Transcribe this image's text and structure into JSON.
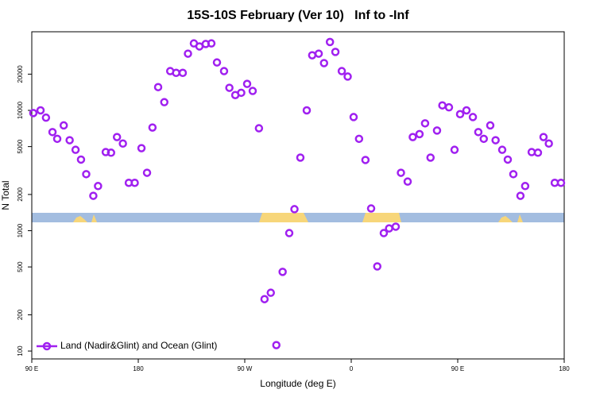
{
  "chart_data": {
    "type": "scatter",
    "title": "15S-10S February (Ver 10)   Inf to -Inf",
    "x_label": "Longitude (deg E)",
    "y_label": "N Total",
    "log_y": true,
    "legend_position": "bottom-left",
    "xlim": [
      90,
      540
    ],
    "ylim": [
      86,
      45000
    ],
    "xticks": [
      {
        "value": 90,
        "label": "90 E"
      },
      {
        "value": 180,
        "label": "180"
      },
      {
        "value": 270,
        "label": "90 W"
      },
      {
        "value": 360,
        "label": "0"
      },
      {
        "value": 450,
        "label": "90 E"
      },
      {
        "value": 540,
        "label": "180"
      }
    ],
    "yticks": [
      100,
      200,
      500,
      1000,
      2000,
      5000,
      10000,
      20000
    ],
    "series": [
      {
        "name": "Land (Nadir&Glint) and Ocean (Glint)",
        "color": "#a020f0",
        "x": [
          91.3,
          97.4,
          102,
          107.5,
          111.5,
          117,
          122,
          127,
          131.6,
          136,
          142,
          146,
          152.5,
          157,
          162,
          167,
          172,
          177,
          182.7,
          187.4,
          192,
          196.8,
          202,
          207,
          212,
          217.6,
          222,
          227,
          231.7,
          237,
          241.8,
          246.5,
          252.5,
          257,
          262,
          267,
          272,
          276.7,
          282,
          286.7,
          292,
          296.7,
          302,
          307.6,
          312,
          317,
          322.4,
          327,
          332.5,
          337,
          342,
          346.6,
          352,
          357,
          362,
          366.6,
          372,
          376.8,
          382,
          387.5,
          392,
          397.6,
          402,
          407.7,
          412,
          417.7,
          422.4,
          427,
          432.5,
          437,
          442.6,
          447.3,
          452,
          457.4,
          462.8,
          467.4,
          472,
          477.5,
          482,
          487.6,
          492.3,
          497,
          503,
          507,
          512.5,
          517.8,
          522.5,
          527,
          532,
          537.3
        ],
        "values": [
          9500,
          10000,
          8700,
          6600,
          5800,
          7500,
          5650,
          4700,
          3900,
          2950,
          1950,
          2350,
          4500,
          4450,
          6000,
          5300,
          2500,
          2500,
          4850,
          3030,
          7200,
          15600,
          11700,
          21200,
          20500,
          20500,
          29600,
          36000,
          34000,
          35600,
          36000,
          25000,
          21200,
          15400,
          13400,
          14000,
          16600,
          14500,
          7100,
          270,
          305,
          112,
          455,
          955,
          1510,
          4050,
          10000,
          28700,
          29600,
          24700,
          37000,
          30600,
          21200,
          19100,
          8800,
          5800,
          3870,
          1530,
          505,
          955,
          1045,
          1080,
          3030,
          2560,
          6000,
          6350,
          7800,
          4050,
          6800,
          11000,
          10600,
          4700,
          9300,
          10000,
          8800,
          6600,
          5800,
          7500,
          5650,
          4700,
          3900,
          2950,
          1950,
          2350,
          4500,
          4450,
          6000,
          5300,
          2500,
          2500
        ]
      }
    ]
  }
}
